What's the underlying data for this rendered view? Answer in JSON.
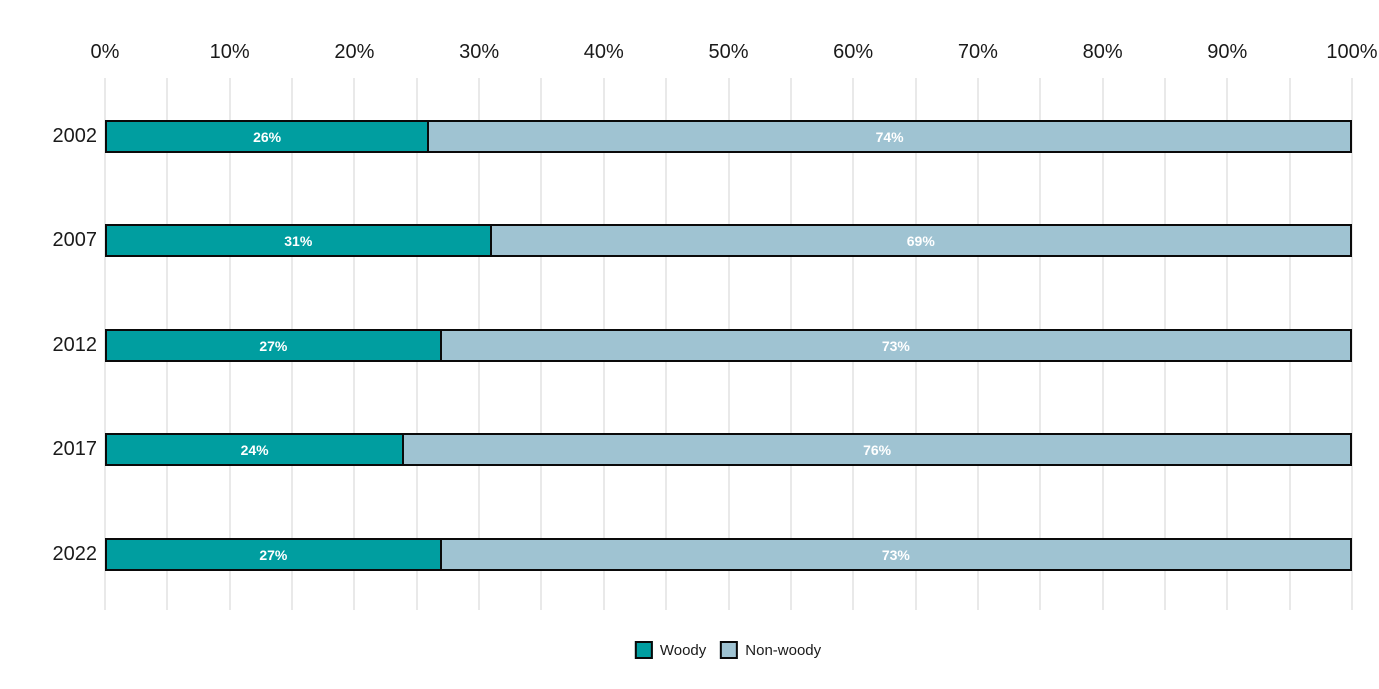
{
  "chart_data": {
    "type": "bar",
    "orientation": "horizontal",
    "stacked": true,
    "title": "",
    "xlabel": "",
    "ylabel": "",
    "xlim": [
      0,
      100
    ],
    "axis_position": "top",
    "grid": {
      "on": true,
      "minor_interval_percent": 5,
      "color": "#e9e9e9"
    },
    "legend_position": "bottom-center",
    "label_format": "{value}%",
    "x_ticks": [
      {
        "value": 0,
        "label": "0%"
      },
      {
        "value": 10,
        "label": "10%"
      },
      {
        "value": 20,
        "label": "20%"
      },
      {
        "value": 30,
        "label": "30%"
      },
      {
        "value": 40,
        "label": "40%"
      },
      {
        "value": 50,
        "label": "50%"
      },
      {
        "value": 60,
        "label": "60%"
      },
      {
        "value": 70,
        "label": "70%"
      },
      {
        "value": 80,
        "label": "80%"
      },
      {
        "value": 90,
        "label": "90%"
      },
      {
        "value": 100,
        "label": "100%"
      }
    ],
    "categories": [
      "2002",
      "2007",
      "2012",
      "2017",
      "2022"
    ],
    "series": [
      {
        "name": "Woody",
        "color": "#009ea0",
        "values": [
          26,
          31,
          27,
          24,
          27
        ],
        "labels": [
          "26%",
          "31%",
          "27%",
          "24%",
          "27%"
        ]
      },
      {
        "name": "Non-woody",
        "color": "#9fc3d2",
        "values": [
          74,
          69,
          73,
          76,
          73
        ],
        "labels": [
          "74%",
          "69%",
          "73%",
          "76%",
          "73%"
        ]
      }
    ]
  },
  "legend": {
    "items": [
      {
        "label": "Woody",
        "color": "#009ea0"
      },
      {
        "label": "Non-woody",
        "color": "#9fc3d2"
      }
    ]
  },
  "colors": {
    "background": "#ffffff",
    "bar_border": "#0a0a0a",
    "gridline": "#e9e9e9",
    "axis_text": "#1a1a1a",
    "value_text": "#ffffff"
  }
}
